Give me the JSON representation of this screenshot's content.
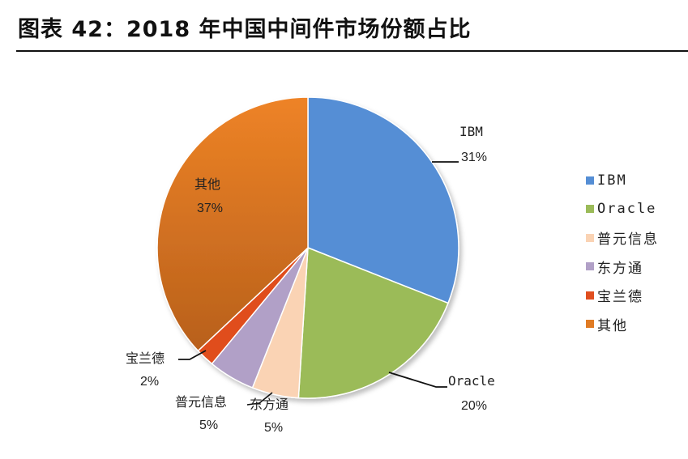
{
  "header": {
    "title": "图表 42：2018 年中国中间件市场份额占比"
  },
  "chart_data": {
    "type": "pie",
    "title": "2018 年中国中间件市场份额占比",
    "categories": [
      "IBM",
      "Oracle",
      "普元信息",
      "东方通",
      "宝兰德",
      "其他"
    ],
    "values": [
      31,
      20,
      5,
      5,
      2,
      37
    ],
    "labels": [
      "31%",
      "20%",
      "5%",
      "5%",
      "2%",
      "37%"
    ],
    "colors": [
      "#558ED5",
      "#9BBB59",
      "#FAD3B4",
      "#B1A0C7",
      "#E04E1F",
      "#E07B24"
    ],
    "legend_position": "right",
    "start_angle_deg": 0,
    "direction": "clockwise"
  },
  "legend": {
    "items": [
      {
        "label": "IBM",
        "color": "#558ED5"
      },
      {
        "label": "Oracle",
        "color": "#9BBB59"
      },
      {
        "label": "普元信息",
        "color": "#FAD3B4"
      },
      {
        "label": "东方通",
        "color": "#B1A0C7"
      },
      {
        "label": "宝兰德",
        "color": "#E04E1F"
      },
      {
        "label": "其他",
        "color": "#E07B24"
      }
    ]
  },
  "data_labels": [
    {
      "name": "IBM",
      "pct": "31%"
    },
    {
      "name": "Oracle",
      "pct": "20%"
    },
    {
      "name": "普元信息",
      "pct": "5%"
    },
    {
      "name": "东方通",
      "pct": "5%"
    },
    {
      "name": "宝兰德",
      "pct": "2%"
    },
    {
      "name": "其他",
      "pct": "37%"
    }
  ]
}
